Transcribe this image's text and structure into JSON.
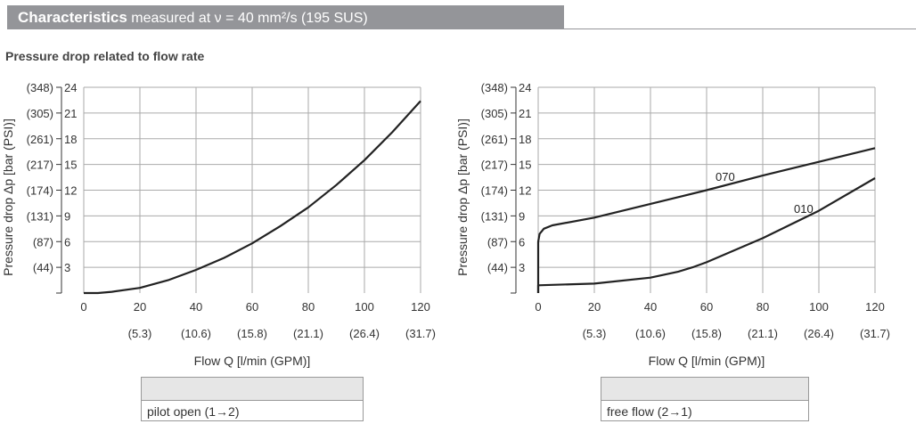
{
  "header": {
    "title": "Characteristics",
    "subtitle": "measured at ν = 40 mm²/s (195 SUS)"
  },
  "section_title": "Pressure drop related to flow rate",
  "chart_data": [
    {
      "type": "line",
      "xlabel": "Flow Q [l/min (GPM)]",
      "ylabel": "Pressure drop Δp [bar (PSI)]",
      "xlim": [
        0,
        120
      ],
      "ylim": [
        0,
        24
      ],
      "grid": true,
      "x_ticks": [
        0,
        20,
        40,
        60,
        80,
        100,
        120
      ],
      "x_ticks_secondary": [
        "",
        "(5.3)",
        "(10.6)",
        "(15.8)",
        "(21.1)",
        "(26.4)",
        "(31.7)"
      ],
      "y_ticks": [
        3,
        6,
        9,
        12,
        15,
        18,
        21,
        24
      ],
      "y_ticks_secondary": [
        "(44)",
        "(87)",
        "(131)",
        "(174)",
        "(217)",
        "(261)",
        "(305)",
        "(348)"
      ],
      "series": [
        {
          "x": [
            0,
            5,
            10,
            20,
            30,
            40,
            50,
            60,
            70,
            80,
            90,
            100,
            110,
            120
          ],
          "y": [
            0,
            0,
            0.15,
            0.6,
            1.5,
            2.7,
            4.1,
            5.8,
            7.8,
            10,
            12.6,
            15.5,
            18.8,
            22.4
          ]
        }
      ],
      "legend": "pilot open (1→2)"
    },
    {
      "type": "line",
      "xlabel": "Flow Q [l/min (GPM)]",
      "ylabel": "Pressure drop Δp [bar (PSI)]",
      "xlim": [
        0,
        120
      ],
      "ylim": [
        0,
        24
      ],
      "grid": true,
      "x_ticks": [
        0,
        20,
        40,
        60,
        80,
        100,
        120
      ],
      "x_ticks_secondary": [
        "",
        "(5.3)",
        "(10.6)",
        "(15.8)",
        "(21.1)",
        "(26.4)",
        "(31.7)"
      ],
      "y_ticks": [
        3,
        6,
        9,
        12,
        15,
        18,
        21,
        24
      ],
      "y_ticks_secondary": [
        "(44)",
        "(87)",
        "(131)",
        "(174)",
        "(217)",
        "(261)",
        "(305)",
        "(348)"
      ],
      "series": [
        {
          "name": "070",
          "x": [
            0,
            0,
            0.5,
            2,
            5,
            20,
            40,
            60,
            80,
            100,
            120
          ],
          "y": [
            0,
            6,
            6.9,
            7.5,
            7.9,
            8.8,
            10.4,
            12,
            13.7,
            15.3,
            16.9
          ]
        },
        {
          "name": "010",
          "x": [
            0,
            0,
            20,
            40,
            50,
            55,
            60,
            80,
            100,
            120
          ],
          "y": [
            0,
            0.9,
            1.1,
            1.8,
            2.5,
            3,
            3.6,
            6.4,
            9.6,
            13.4
          ]
        }
      ],
      "legend": "free flow (2→1)"
    }
  ]
}
